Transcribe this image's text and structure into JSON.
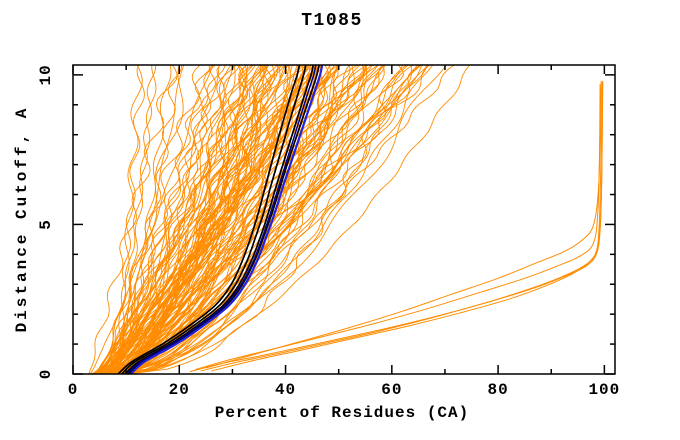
{
  "chart_data": {
    "type": "line",
    "title": "T1085",
    "xlabel": "Percent of Residues (CA)",
    "ylabel": "Distance Cutoff, A",
    "xlim": [
      0,
      102
    ],
    "ylim": [
      0,
      10.33
    ],
    "x_major_ticks": [
      0,
      20,
      40,
      60,
      80,
      100
    ],
    "x_minor_ticks": [
      10,
      30,
      50,
      70,
      90
    ],
    "y_major_ticks": [
      0,
      5,
      10
    ],
    "y_minor_ticks": [
      1,
      2,
      3,
      4,
      6,
      7,
      8,
      9
    ],
    "grid": false,
    "legend": "none",
    "frame": "box-with-mirrored-inward-ticks",
    "colors": {
      "ensemble": "#ff8c00",
      "highlight_black": "#000000",
      "highlight_navy": "#00008b",
      "highlight_blue": "#2222dd",
      "axis": "#000000",
      "background": "#ffffff"
    },
    "ensemble": {
      "description": "Dense fan of orange prediction curves rising from the lower-left; percent of residues under cutoff grows with distance cutoff",
      "count": 132,
      "seed": 7,
      "x_start_range": [
        2.5,
        11
      ],
      "x_top_range": [
        11,
        75
      ],
      "shape_exp_range": [
        0.42,
        1.02
      ]
    },
    "series": [
      {
        "name": "outlier-model-1",
        "color_key": "ensemble",
        "width": 1,
        "points": [
          [
            22,
            0.08
          ],
          [
            28,
            0.35
          ],
          [
            35,
            0.6
          ],
          [
            43,
            0.9
          ],
          [
            52,
            1.25
          ],
          [
            62,
            1.65
          ],
          [
            72,
            2.1
          ],
          [
            81,
            2.55
          ],
          [
            88,
            2.95
          ],
          [
            93,
            3.3
          ],
          [
            96.5,
            3.6
          ],
          [
            98.5,
            4.0
          ],
          [
            99.2,
            4.8
          ],
          [
            99.5,
            6.5
          ],
          [
            99.6,
            8.5
          ],
          [
            99.6,
            9.75
          ]
        ]
      },
      {
        "name": "outlier-model-2",
        "color_key": "ensemble",
        "width": 1,
        "points": [
          [
            24,
            0.1
          ],
          [
            31,
            0.4
          ],
          [
            39,
            0.7
          ],
          [
            48,
            1.05
          ],
          [
            58,
            1.45
          ],
          [
            68,
            1.9
          ],
          [
            78,
            2.4
          ],
          [
            86,
            2.85
          ],
          [
            92,
            3.25
          ],
          [
            96,
            3.6
          ],
          [
            98.3,
            4.0
          ],
          [
            99.0,
            4.9
          ],
          [
            99.3,
            6.8
          ],
          [
            99.4,
            9.0
          ],
          [
            99.4,
            9.8
          ]
        ]
      },
      {
        "name": "outlier-model-3",
        "color_key": "ensemble",
        "width": 1,
        "points": [
          [
            23,
            0.15
          ],
          [
            30,
            0.5
          ],
          [
            38,
            0.85
          ],
          [
            47,
            1.25
          ],
          [
            57,
            1.7
          ],
          [
            67,
            2.2
          ],
          [
            77,
            2.75
          ],
          [
            85,
            3.2
          ],
          [
            91,
            3.6
          ],
          [
            95.5,
            3.95
          ],
          [
            98,
            4.4
          ],
          [
            98.8,
            5.5
          ],
          [
            99.1,
            7.5
          ],
          [
            99.2,
            9.7
          ]
        ]
      },
      {
        "name": "outlier-model-4",
        "color_key": "ensemble",
        "width": 1,
        "points": [
          [
            26,
            0.1
          ],
          [
            34,
            0.45
          ],
          [
            43,
            0.8
          ],
          [
            53,
            1.2
          ],
          [
            63,
            1.6
          ],
          [
            73,
            2.05
          ],
          [
            82,
            2.5
          ],
          [
            89,
            2.95
          ],
          [
            94,
            3.35
          ],
          [
            97.2,
            3.75
          ],
          [
            98.8,
            4.3
          ],
          [
            99.4,
            5.8
          ],
          [
            99.6,
            8.0
          ],
          [
            99.7,
            9.8
          ]
        ]
      },
      {
        "name": "outlier-model-5",
        "color_key": "ensemble",
        "width": 1,
        "points": [
          [
            25,
            0.2
          ],
          [
            33,
            0.6
          ],
          [
            42,
            1.05
          ],
          [
            52,
            1.55
          ],
          [
            62,
            2.1
          ],
          [
            71,
            2.65
          ],
          [
            80,
            3.2
          ],
          [
            87,
            3.7
          ],
          [
            92.5,
            4.1
          ],
          [
            96,
            4.5
          ],
          [
            98,
            5.0
          ],
          [
            98.9,
            6.2
          ],
          [
            99.2,
            8.2
          ],
          [
            99.3,
            9.6
          ]
        ]
      },
      {
        "name": "highlight-black-1",
        "color_key": "highlight_black",
        "width": 1.7,
        "points": [
          [
            8.5,
            0
          ],
          [
            11,
            0.4
          ],
          [
            16.8,
            1.0
          ],
          [
            21.8,
            1.6
          ],
          [
            26.8,
            2.3
          ],
          [
            29.8,
            3.0
          ],
          [
            31.9,
            3.8
          ],
          [
            33.5,
            4.6
          ],
          [
            34.9,
            5.4
          ],
          [
            36.1,
            6.2
          ],
          [
            37.3,
            7.0
          ],
          [
            38.5,
            7.8
          ],
          [
            39.8,
            8.6
          ],
          [
            41.1,
            9.4
          ],
          [
            42.2,
            10.0
          ],
          [
            42.6,
            10.33
          ]
        ]
      },
      {
        "name": "highlight-black-2",
        "color_key": "highlight_black",
        "width": 1.7,
        "points": [
          [
            9.2,
            0
          ],
          [
            11.6,
            0.4
          ],
          [
            17.6,
            1.0
          ],
          [
            22.6,
            1.6
          ],
          [
            27.6,
            2.3
          ],
          [
            30.6,
            3.0
          ],
          [
            32.8,
            3.8
          ],
          [
            34.4,
            4.6
          ],
          [
            35.9,
            5.4
          ],
          [
            37.1,
            6.2
          ],
          [
            38.4,
            7.0
          ],
          [
            39.7,
            7.8
          ],
          [
            41.0,
            8.6
          ],
          [
            42.4,
            9.4
          ],
          [
            43.4,
            10.0
          ],
          [
            43.8,
            10.33
          ]
        ]
      },
      {
        "name": "highlight-black-3",
        "color_key": "highlight_black",
        "width": 1.7,
        "points": [
          [
            9.8,
            0
          ],
          [
            12.3,
            0.4
          ],
          [
            18.3,
            1.0
          ],
          [
            23.3,
            1.6
          ],
          [
            28.3,
            2.3
          ],
          [
            31.3,
            3.0
          ],
          [
            33.6,
            3.8
          ],
          [
            35.3,
            4.6
          ],
          [
            36.8,
            5.4
          ],
          [
            38.1,
            6.2
          ],
          [
            39.5,
            7.0
          ],
          [
            40.9,
            7.8
          ],
          [
            42.3,
            8.6
          ],
          [
            43.7,
            9.4
          ],
          [
            44.8,
            10.0
          ],
          [
            45.2,
            10.33
          ]
        ]
      },
      {
        "name": "highlight-black-4",
        "color_key": "highlight_black",
        "width": 1.7,
        "points": [
          [
            10.4,
            0
          ],
          [
            12.9,
            0.4
          ],
          [
            18.9,
            1.0
          ],
          [
            23.9,
            1.6
          ],
          [
            28.9,
            2.3
          ],
          [
            31.9,
            3.0
          ],
          [
            34.2,
            3.8
          ],
          [
            35.9,
            4.6
          ],
          [
            37.5,
            5.4
          ],
          [
            38.9,
            6.2
          ],
          [
            40.3,
            7.0
          ],
          [
            41.8,
            7.8
          ],
          [
            43.3,
            8.6
          ],
          [
            44.8,
            9.4
          ],
          [
            45.9,
            10.0
          ],
          [
            46.3,
            10.33
          ]
        ]
      },
      {
        "name": "highlight-navy-1",
        "color_key": "highlight_navy",
        "width": 1.5,
        "points": [
          [
            10.1,
            0
          ],
          [
            12.7,
            0.4
          ],
          [
            18.6,
            1.0
          ],
          [
            23.6,
            1.6
          ],
          [
            28.6,
            2.3
          ],
          [
            31.7,
            3.0
          ],
          [
            34.0,
            3.8
          ],
          [
            35.7,
            4.6
          ],
          [
            37.2,
            5.4
          ],
          [
            38.6,
            6.2
          ],
          [
            40.0,
            7.0
          ],
          [
            41.4,
            7.8
          ],
          [
            42.8,
            8.6
          ],
          [
            44.2,
            9.4
          ],
          [
            45.3,
            10.0
          ],
          [
            45.7,
            10.33
          ]
        ]
      },
      {
        "name": "highlight-blue-1",
        "color_key": "highlight_blue",
        "width": 2.2,
        "points": [
          [
            10.9,
            0
          ],
          [
            13.4,
            0.4
          ],
          [
            19.4,
            1.0
          ],
          [
            24.4,
            1.6
          ],
          [
            29.4,
            2.3
          ],
          [
            32.4,
            3.0
          ],
          [
            34.7,
            3.8
          ],
          [
            36.4,
            4.6
          ],
          [
            38.0,
            5.4
          ],
          [
            39.4,
            6.2
          ],
          [
            40.9,
            7.0
          ],
          [
            42.4,
            7.8
          ],
          [
            43.9,
            8.6
          ],
          [
            45.4,
            9.4
          ],
          [
            46.5,
            10.0
          ],
          [
            46.9,
            10.33
          ]
        ]
      }
    ]
  }
}
